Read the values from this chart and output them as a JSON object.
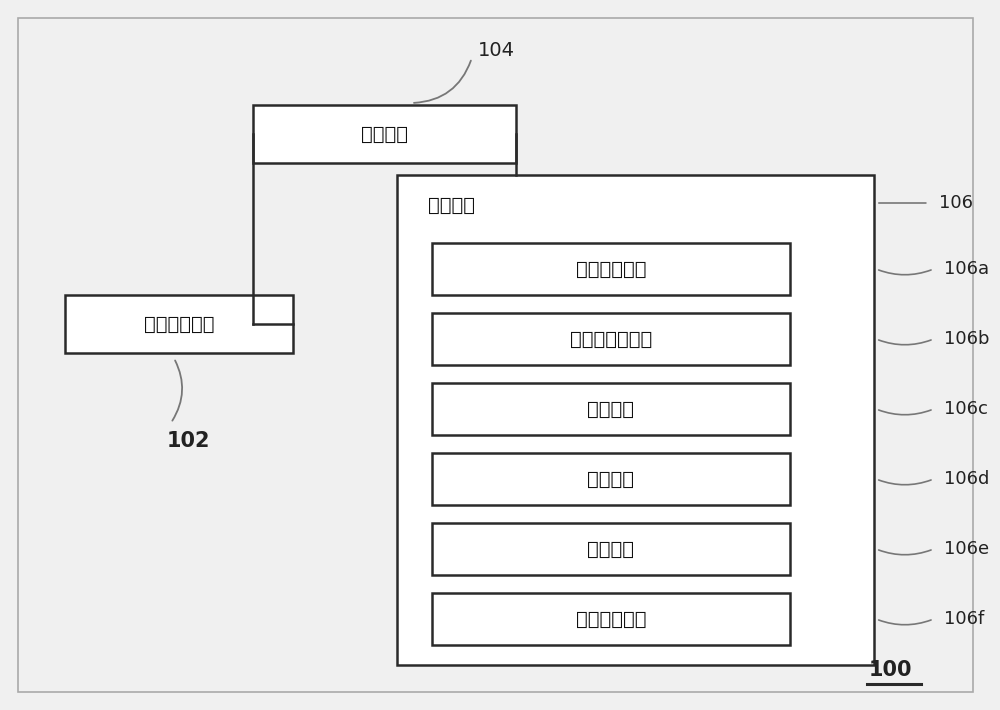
{
  "background_color": "#f0f0f0",
  "title": "100",
  "processing_unit_label": "处理单元",
  "processing_unit_id": "104",
  "network_interface_label": "网络通信接口",
  "network_interface_id": "102",
  "storage_unit_label": "存储单元",
  "storage_unit_id": "106",
  "modules": [
    {
      "label": "交易判断模块",
      "id": "106a"
    },
    {
      "label": "工作量证明模块",
      "id": "106b"
    },
    {
      "label": "发布模块",
      "id": "106c"
    },
    {
      "label": "接收模块",
      "id": "106d"
    },
    {
      "label": "验证模块",
      "id": "106e"
    },
    {
      "label": "难度调整模块",
      "id": "106f"
    }
  ],
  "box_facecolor": "#ffffff",
  "box_edgecolor": "#2a2a2a",
  "text_color": "#111111",
  "line_color": "#777777",
  "id_color": "#222222",
  "border_color": "#999999",
  "font_size_main": 14,
  "font_size_id": 12,
  "font_size_100": 14
}
